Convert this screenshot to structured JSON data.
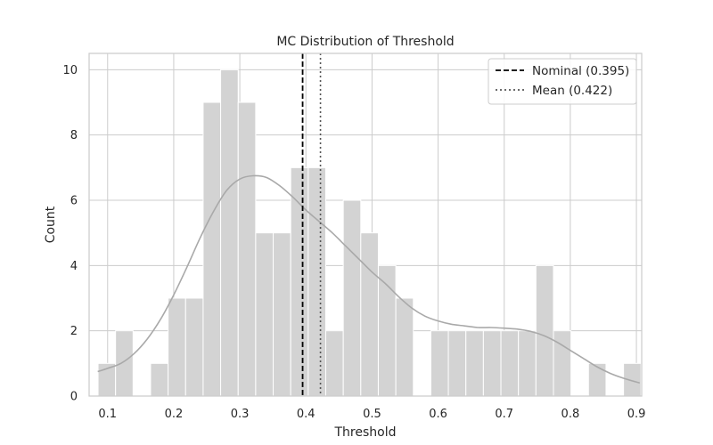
{
  "chart_data": {
    "type": "bar",
    "title": "MC Distribution of Threshold",
    "xlabel": "Threshold",
    "ylabel": "Count",
    "xlim": [
      0.072,
      0.908
    ],
    "ylim": [
      0,
      10.5
    ],
    "xticks": [
      0.1,
      0.2,
      0.3,
      0.4,
      0.5,
      0.6,
      0.7,
      0.8,
      0.9
    ],
    "xtick_labels": [
      "0.1",
      "0.2",
      "0.3",
      "0.4",
      "0.5",
      "0.6",
      "0.7",
      "0.8",
      "0.9"
    ],
    "yticks": [
      0,
      2,
      4,
      6,
      8,
      10
    ],
    "ytick_labels": [
      "0",
      "2",
      "4",
      "6",
      "8",
      "10"
    ],
    "grid": true,
    "bins": [
      {
        "x0": 0.0855,
        "x1": 0.112,
        "count": 1
      },
      {
        "x0": 0.112,
        "x1": 0.1385,
        "count": 2
      },
      {
        "x0": 0.1385,
        "x1": 0.165,
        "count": 0
      },
      {
        "x0": 0.165,
        "x1": 0.1915,
        "count": 1
      },
      {
        "x0": 0.1915,
        "x1": 0.218,
        "count": 3
      },
      {
        "x0": 0.218,
        "x1": 0.2445,
        "count": 3
      },
      {
        "x0": 0.2445,
        "x1": 0.271,
        "count": 9
      },
      {
        "x0": 0.271,
        "x1": 0.2975,
        "count": 10
      },
      {
        "x0": 0.2975,
        "x1": 0.324,
        "count": 9
      },
      {
        "x0": 0.324,
        "x1": 0.3505,
        "count": 5
      },
      {
        "x0": 0.3505,
        "x1": 0.377,
        "count": 5
      },
      {
        "x0": 0.377,
        "x1": 0.4035,
        "count": 7
      },
      {
        "x0": 0.4035,
        "x1": 0.43,
        "count": 7
      },
      {
        "x0": 0.43,
        "x1": 0.4565,
        "count": 2
      },
      {
        "x0": 0.4565,
        "x1": 0.483,
        "count": 6
      },
      {
        "x0": 0.483,
        "x1": 0.5095,
        "count": 5
      },
      {
        "x0": 0.5095,
        "x1": 0.536,
        "count": 4
      },
      {
        "x0": 0.536,
        "x1": 0.5625,
        "count": 3
      },
      {
        "x0": 0.5625,
        "x1": 0.589,
        "count": 0
      },
      {
        "x0": 0.589,
        "x1": 0.6155,
        "count": 2
      },
      {
        "x0": 0.6155,
        "x1": 0.642,
        "count": 2
      },
      {
        "x0": 0.642,
        "x1": 0.6685,
        "count": 2
      },
      {
        "x0": 0.6685,
        "x1": 0.695,
        "count": 2
      },
      {
        "x0": 0.695,
        "x1": 0.7215,
        "count": 2
      },
      {
        "x0": 0.7215,
        "x1": 0.748,
        "count": 2
      },
      {
        "x0": 0.748,
        "x1": 0.7745,
        "count": 4
      },
      {
        "x0": 0.7745,
        "x1": 0.801,
        "count": 2
      },
      {
        "x0": 0.801,
        "x1": 0.8275,
        "count": 0
      },
      {
        "x0": 0.8275,
        "x1": 0.854,
        "count": 1
      },
      {
        "x0": 0.854,
        "x1": 0.8805,
        "count": 0
      },
      {
        "x0": 0.8805,
        "x1": 0.907,
        "count": 1
      }
    ],
    "kde": {
      "x": [
        0.085,
        0.1,
        0.12,
        0.14,
        0.16,
        0.18,
        0.2,
        0.22,
        0.24,
        0.26,
        0.28,
        0.3,
        0.32,
        0.34,
        0.36,
        0.38,
        0.4,
        0.42,
        0.44,
        0.46,
        0.48,
        0.5,
        0.52,
        0.54,
        0.56,
        0.58,
        0.6,
        0.62,
        0.64,
        0.66,
        0.68,
        0.7,
        0.72,
        0.74,
        0.76,
        0.78,
        0.8,
        0.82,
        0.84,
        0.86,
        0.88,
        0.905
      ],
      "y": [
        0.75,
        0.85,
        1.0,
        1.3,
        1.75,
        2.35,
        3.1,
        3.95,
        4.85,
        5.65,
        6.3,
        6.65,
        6.75,
        6.7,
        6.45,
        6.1,
        5.7,
        5.35,
        5.0,
        4.6,
        4.2,
        3.8,
        3.45,
        3.05,
        2.7,
        2.45,
        2.3,
        2.2,
        2.15,
        2.1,
        2.1,
        2.08,
        2.05,
        1.98,
        1.85,
        1.65,
        1.4,
        1.15,
        0.9,
        0.7,
        0.55,
        0.4
      ]
    },
    "series": [
      {
        "name": "Nominal (0.395)",
        "value": 0.395,
        "style": "dashed",
        "color": "#000000"
      },
      {
        "name": "Mean (0.422)",
        "value": 0.422,
        "style": "dotted",
        "color": "#555555"
      }
    ],
    "legend_position": "top-right",
    "colors": {
      "bar_fill": "#d3d3d3",
      "bar_edge": "#ffffff",
      "kde_line": "#a9a9a9",
      "grid": "#cccccc",
      "axes_edge": "#cccccc"
    }
  }
}
